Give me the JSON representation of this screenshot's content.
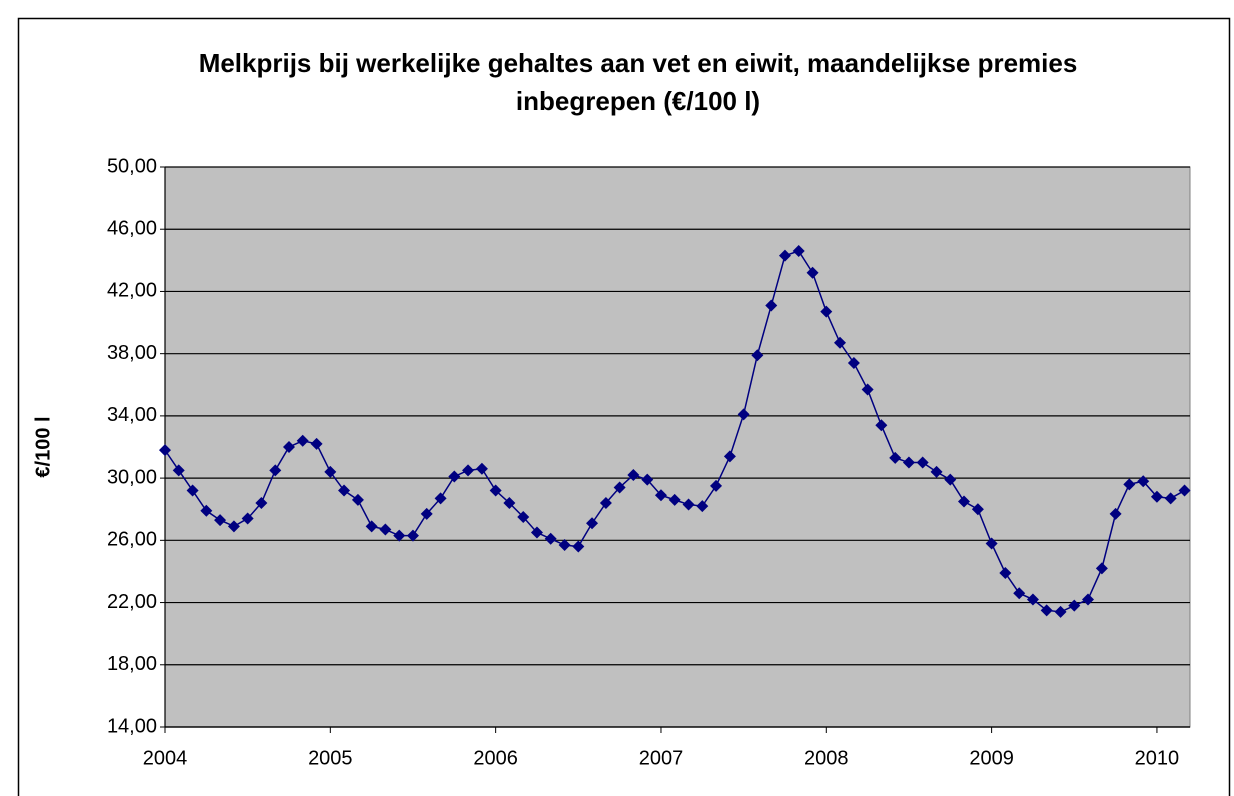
{
  "chart_data": {
    "type": "line",
    "title": "Melkprijs bij werkelijke gehaltes aan vet en eiwit, maandelijkse premies inbegrepen (€/100 l)",
    "y_label": "€/100 l",
    "color": "#000080",
    "grid": true,
    "x": [
      2004,
      2004.083,
      2004.167,
      2004.25,
      2004.333,
      2004.417,
      2004.5,
      2004.583,
      2004.667,
      2004.75,
      2004.833,
      2004.917,
      2005,
      2005.083,
      2005.167,
      2005.25,
      2005.333,
      2005.417,
      2005.5,
      2005.583,
      2005.667,
      2005.75,
      2005.833,
      2005.917,
      2006,
      2006.083,
      2006.167,
      2006.25,
      2006.333,
      2006.417,
      2006.5,
      2006.583,
      2006.667,
      2006.75,
      2006.833,
      2006.917,
      2007,
      2007.083,
      2007.167,
      2007.25,
      2007.333,
      2007.417,
      2007.5,
      2007.583,
      2007.667,
      2007.75,
      2007.833,
      2007.917,
      2008,
      2008.083,
      2008.167,
      2008.25,
      2008.333,
      2008.417,
      2008.5,
      2008.583,
      2008.667,
      2008.75,
      2008.833,
      2008.917,
      2009,
      2009.083,
      2009.167,
      2009.25,
      2009.333,
      2009.417,
      2009.5,
      2009.583,
      2009.667,
      2009.75,
      2009.833,
      2009.917,
      2010,
      2010.083,
      2010.167
    ],
    "values": [
      31.8,
      30.5,
      29.2,
      27.9,
      27.3,
      26.9,
      27.4,
      28.4,
      30.5,
      32.0,
      32.4,
      32.2,
      30.4,
      29.2,
      28.6,
      26.9,
      26.7,
      26.3,
      26.3,
      27.7,
      28.7,
      30.1,
      30.5,
      30.6,
      29.2,
      28.4,
      27.5,
      26.5,
      26.1,
      25.7,
      25.6,
      27.1,
      28.4,
      29.4,
      30.2,
      29.9,
      28.9,
      28.6,
      28.3,
      28.2,
      29.5,
      31.4,
      34.1,
      37.9,
      41.1,
      44.3,
      44.6,
      43.2,
      40.7,
      38.7,
      37.4,
      35.7,
      33.4,
      31.3,
      31.0,
      31.0,
      30.4,
      29.9,
      28.5,
      28.0,
      25.8,
      23.9,
      22.6,
      22.2,
      21.5,
      21.4,
      21.8,
      22.2,
      24.2,
      27.7,
      29.6,
      29.8,
      28.8,
      28.7,
      29.2
    ],
    "xlim": [
      2004,
      2010.2
    ],
    "xticks": [
      2004,
      2005,
      2006,
      2007,
      2008,
      2009,
      2010
    ],
    "ylim": [
      14,
      50
    ],
    "yticks": [
      {
        "value": 14,
        "label": "14,00"
      },
      {
        "value": 18,
        "label": "18,00"
      },
      {
        "value": 22,
        "label": "22,00"
      },
      {
        "value": 26,
        "label": "26,00"
      },
      {
        "value": 30,
        "label": "30,00"
      },
      {
        "value": 34,
        "label": "34,00"
      },
      {
        "value": 38,
        "label": "38,00"
      },
      {
        "value": 42,
        "label": "42,00"
      },
      {
        "value": 46,
        "label": "46,00"
      },
      {
        "value": 50,
        "label": "50,00"
      }
    ]
  }
}
